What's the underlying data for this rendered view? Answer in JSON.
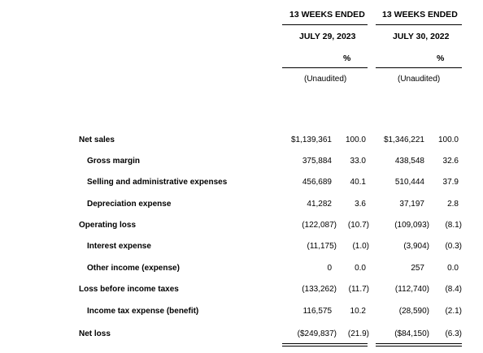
{
  "header": {
    "col1_title": "13 WEEKS ENDED",
    "col2_title": "13 WEEKS ENDED",
    "col1_date": "JULY 29, 2023",
    "col2_date": "JULY 30, 2022",
    "col1_pct": "%",
    "col2_pct": "%",
    "col1_note": "(Unaudited)",
    "col2_note": "(Unaudited)"
  },
  "rows": [
    {
      "label": "Net sales",
      "a": "$1,139,361",
      "ap": "100.0",
      "b": "$1,346,221",
      "bp": "100.0"
    },
    {
      "label": "Gross margin",
      "a": "375,884",
      "ap": "33.0",
      "b": "438,548",
      "bp": "32.6"
    },
    {
      "label": "Selling and administrative expenses",
      "a": "456,689",
      "ap": "40.1",
      "b": "510,444",
      "bp": "37.9"
    },
    {
      "label": "Depreciation expense",
      "a": "41,282",
      "ap": "3.6",
      "b": "37,197",
      "bp": "2.8"
    },
    {
      "label": "Operating loss",
      "a": "(122,087)",
      "ap": "(10.7)",
      "b": "(109,093)",
      "bp": "(8.1)"
    },
    {
      "label": "Interest expense",
      "a": "(11,175)",
      "ap": "(1.0)",
      "b": "(3,904)",
      "bp": "(0.3)"
    },
    {
      "label": "Other income (expense)",
      "a": "0",
      "ap": "0.0",
      "b": "257",
      "bp": "0.0"
    },
    {
      "label": "Loss before income taxes",
      "a": "(133,262)",
      "ap": "(11.7)",
      "b": "(112,740)",
      "bp": "(8.4)"
    },
    {
      "label": "Income tax expense (benefit)",
      "a": "116,575",
      "ap": "10.2",
      "b": "(28,590)",
      "bp": "(2.1)"
    },
    {
      "label": "Net loss",
      "a": "($249,837)",
      "ap": "(21.9)",
      "b": "($84,150)",
      "bp": "(6.3)"
    }
  ]
}
